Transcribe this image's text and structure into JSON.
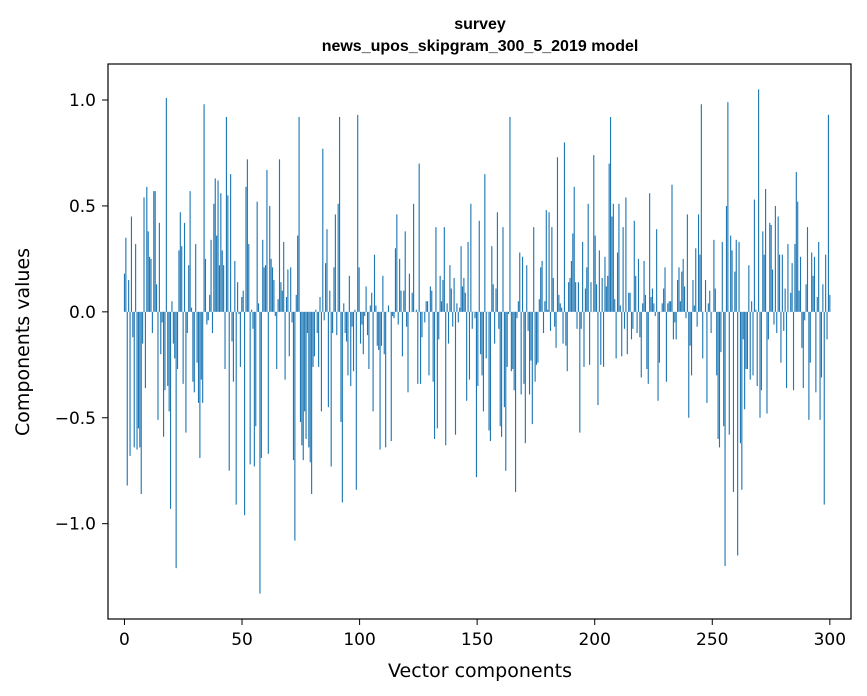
{
  "chart_data": {
    "type": "bar",
    "title": "survey",
    "subtitle": "news_upos_skipgram_300_5_2019 model",
    "xlabel": "Vector components",
    "ylabel": "Components values",
    "xlim": [
      -7,
      309
    ],
    "ylim": [
      -1.45,
      1.17
    ],
    "xticks": [
      0,
      50,
      100,
      150,
      200,
      250,
      300
    ],
    "yticks": [
      -1.0,
      -0.5,
      0.0,
      0.5,
      1.0
    ],
    "ytick_labels": [
      "−1.0",
      "−0.5",
      "0.0",
      "0.5",
      "1.0"
    ],
    "bar_color": "#1f77b4",
    "values": [
      0.18,
      0.35,
      -0.82,
      0.15,
      -0.68,
      0.45,
      -0.12,
      -0.64,
      0.32,
      -0.65,
      -0.55,
      -0.64,
      -0.86,
      -0.15,
      0.54,
      -0.36,
      0.59,
      0.38,
      0.26,
      0.25,
      -0.1,
      0.57,
      0.57,
      0.13,
      -0.51,
      0.42,
      -0.2,
      -0.05,
      -0.59,
      -0.37,
      1.01,
      -0.35,
      -0.47,
      -0.93,
      0.05,
      -0.15,
      -0.22,
      -1.21,
      -0.27,
      0.29,
      0.47,
      0.31,
      -0.34,
      0.42,
      -0.57,
      -0.1,
      0.22,
      0.57,
      0.02,
      -0.33,
      -0.38,
      0.32,
      -0.24,
      -0.43,
      -0.69,
      -0.32,
      -0.43,
      0.98,
      0.25,
      -0.06,
      -0.04,
      0.08,
      0.34,
      -0.1,
      0.51,
      0.63,
      0.36,
      0.62,
      0.22,
      0.56,
      0.29,
      0.22,
      -0.27,
      0.92,
      0.55,
      -0.75,
      0.65,
      -0.14,
      -0.33,
      0.24,
      -0.91,
      0.14,
      -0.01,
      -0.26,
      0.07,
      0.1,
      -0.96,
      0.59,
      0.72,
      0.32,
      -0.72,
      0.01,
      -0.08,
      -0.73,
      -0.54,
      0.52,
      0.04,
      -1.33,
      -0.69,
      0.34,
      0.21,
      0.22,
      0.67,
      -0.67,
      0.5,
      0.25,
      0.21,
      0.15,
      -0.02,
      -0.27,
      0.06,
      0.72,
      0.14,
      0.1,
      0.33,
      -0.32,
      0.07,
      0.2,
      -0.21,
      0.21,
      -0.05,
      -0.7,
      -1.08,
      0.08,
      0.36,
      0.92,
      -0.52,
      -0.63,
      -0.7,
      -0.47,
      -0.6,
      -0.1,
      -0.64,
      -0.71,
      -0.86,
      -0.26,
      -0.21,
      0.01,
      -0.1,
      -0.26,
      0.07,
      -0.47,
      0.77,
      -0.04,
      0.23,
      0.39,
      -0.45,
      0.1,
      -0.73,
      -0.1,
      0.21,
      0.46,
      -0.11,
      0.51,
      0.92,
      -0.52,
      -0.9,
      0.04,
      -0.1,
      -0.14,
      -0.3,
      0.17,
      -0.35,
      -0.07,
      -0.28,
      0.01,
      -0.84,
      0.93,
      0.21,
      -0.15,
      -0.06,
      -0.2,
      -0.02,
      0.12,
      -0.11,
      -0.27,
      0.03,
      0.09,
      -0.47,
      0.27,
      0.03,
      -0.16,
      -0.18,
      -0.65,
      -0.16,
      0.17,
      -0.2,
      -0.64,
      0.0,
      0.03,
      0.0,
      -0.61,
      -0.02,
      -0.03,
      0.3,
      0.46,
      -0.06,
      0.25,
      0.1,
      -0.21,
      0.1,
      0.38,
      -0.07,
      -0.38,
      0.18,
      0.0,
      0.09,
      0.51,
      0.0,
      0.01,
      -0.34,
      0.7,
      -0.34,
      -0.12,
      0.0,
      -0.05,
      0.05,
      0.05,
      -0.3,
      0.12,
      0.1,
      -0.33,
      -0.6,
      0.4,
      -0.55,
      -0.13,
      0.17,
      0.05,
      0.15,
      0.4,
      -0.63,
      0.04,
      -0.15,
      0.22,
      0.11,
      -0.07,
      0.16,
      -0.58,
      0.04,
      -0.05,
      0.02,
      0.31,
      0.12,
      0.16,
      0.09,
      -0.42,
      0.33,
      -0.32,
      0.51,
      -0.08,
      0.0,
      -0.03,
      -0.78,
      -0.35,
      0.43,
      -0.2,
      -0.3,
      -0.47,
      0.65,
      -0.22,
      0.0,
      -0.56,
      -0.61,
      0.31,
      0.13,
      -0.15,
      0.11,
      0.47,
      -0.08,
      -0.54,
      -0.59,
      0.4,
      -0.45,
      -0.75,
      -0.26,
      -0.01,
      0.92,
      -0.28,
      -0.27,
      -0.37,
      -0.85,
      -0.03,
      0.05,
      0.28,
      -0.39,
      0.26,
      -0.34,
      -0.62,
      0.22,
      -0.09,
      -0.39,
      -0.23,
      -0.53,
      0.4,
      -0.33,
      -0.25,
      -0.24,
      0.06,
      0.21,
      0.24,
      -0.1,
      0.05,
      0.48,
      0.01,
      0.47,
      -0.09,
      0.4,
      0.16,
      -0.07,
      -0.17,
      0.73,
      0.08,
      0.04,
      0.02,
      -0.15,
      0.8,
      -0.16,
      -0.28,
      0.14,
      0.16,
      0.24,
      0.37,
      0.59,
      0.14,
      -0.08,
      0.14,
      -0.57,
      -0.08,
      0.33,
      -0.26,
      0.11,
      0.21,
      0.51,
      -0.25,
      0.14,
      0.0,
      0.74,
      0.36,
      0.13,
      -0.44,
      0.29,
      -0.25,
      0.16,
      -0.26,
      0.26,
      0.12,
      0.17,
      0.7,
      0.92,
      0.45,
      0.51,
      0.06,
      -0.22,
      0.28,
      0.51,
      0.03,
      -0.21,
      0.4,
      -0.08,
      0.54,
      -0.2,
      0.09,
      0.09,
      -0.13,
      -0.08,
      0.43,
      0.17,
      -0.1,
      0.25,
      -0.12,
      -0.31,
      0.04,
      0.24,
      0.08,
      -0.27,
      -0.34,
      0.56,
      0.07,
      0.11,
      0.04,
      -0.02,
      0.39,
      -0.42,
      -0.24,
      0.0,
      0.04,
      0.11,
      0.21,
      -0.33,
      0.04,
      0.05,
      0.05,
      0.6,
      -0.13,
      -0.05,
      -0.13,
      0.15,
      0.21,
      0.05,
      0.19,
      0.25,
      0.12,
      -0.03,
      0.46,
      -0.5,
      -0.16,
      -0.3,
      0.15,
      0.03,
      0.3,
      -0.07,
      0.46,
      0.27,
      0.98,
      -0.22,
      0.0,
      0.15,
      -0.43,
      0.04,
      0.1,
      -0.1,
      0.0,
      0.34,
      0.11,
      -0.3,
      -0.6,
      -0.64,
      -0.19,
      0.33,
      -0.54,
      -1.2,
      0.5,
      0.99,
      -0.58,
      0.36,
      0.29,
      -0.85,
      0.19,
      0.34,
      -1.15,
      0.33,
      -0.62,
      -0.84,
      -0.13,
      -0.46,
      -0.27,
      -0.27,
      0.22,
      -0.32,
      0.05,
      -0.3,
      0.53,
      0.01,
      -0.35,
      1.05,
      -0.5,
      -0.37,
      0.38,
      0.27,
      0.58,
      -0.48,
      -0.13,
      0.42,
      0.41,
      0.2,
      -0.06,
      0.5,
      -0.1,
      0.45,
      0.27,
      -0.24,
      0.27,
      -0.09,
      0.11,
      -0.36,
      0.32,
      0.0,
      0.09,
      0.23,
      -0.37,
      0.32,
      0.66,
      0.52,
      0.1,
      0.26,
      -0.17,
      -0.36,
      -0.04,
      0.13,
      0.4,
      -0.51,
      -0.24,
      0.28,
      0.17,
      0.26,
      -0.38,
      0.07,
      0.33,
      -0.51,
      -0.31,
      0.13,
      -0.91,
      0.27,
      -0.13,
      0.93,
      0.08
    ]
  }
}
